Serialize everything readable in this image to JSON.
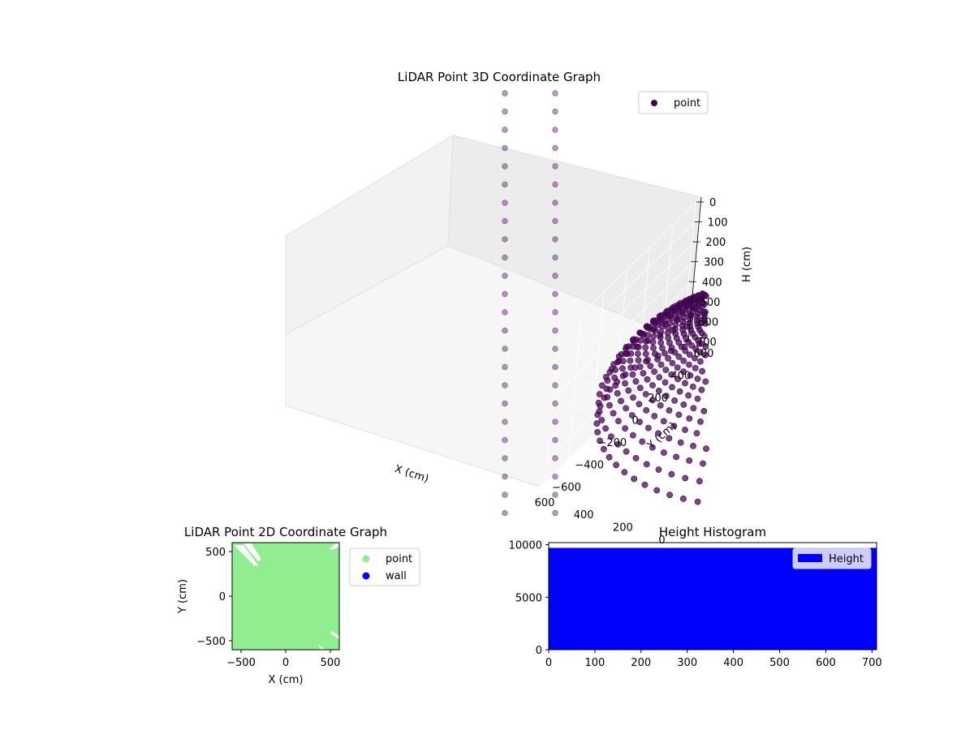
{
  "chart_data": [
    {
      "type": "scatter",
      "projection": "3d",
      "title": "LiDAR Point 3D Coordinate Graph",
      "xlabel": "X (cm)",
      "ylabel": "Y (cm)",
      "zlabel": "H (cm)",
      "xlim": [
        -650,
        650
      ],
      "ylim": [
        -650,
        650
      ],
      "zlim": [
        0,
        700
      ],
      "z_inverted": true,
      "xticks": [
        "−600",
        "−400",
        "−200",
        "0",
        "200",
        "400",
        "600"
      ],
      "yticks": [
        "−600",
        "−400",
        "−200",
        "0",
        "200",
        "400",
        "600"
      ],
      "zticks": [
        "0",
        "100",
        "200",
        "300",
        "400",
        "500",
        "600",
        "700"
      ],
      "legend": {
        "location": "top-right",
        "entries": [
          {
            "label": "point",
            "color": "#440154"
          }
        ]
      },
      "series": [
        {
          "name": "point",
          "color": "#440154",
          "description_values": {
            "x_range": [
              -650,
              650
            ],
            "y_range": [
              -650,
              650
            ],
            "h_range": [
              0,
              700
            ]
          }
        }
      ],
      "grid": true
    },
    {
      "type": "scatter",
      "title": "LiDAR Point 2D Coordinate Graph",
      "xlabel": "X (cm)",
      "ylabel": "Y (cm)",
      "xlim": [
        -600,
        600
      ],
      "ylim": [
        -600,
        600
      ],
      "xticks": [
        "−500",
        "0",
        "500"
      ],
      "yticks": [
        "−500",
        "0",
        "500"
      ],
      "legend": {
        "location": "outside-right",
        "entries": [
          {
            "label": "point",
            "color": "#90ee90"
          },
          {
            "label": "wall",
            "color": "#0000ff"
          }
        ]
      },
      "grid": false
    },
    {
      "type": "bar",
      "subtype": "histogram",
      "title": "Height Histogram",
      "xlim": [
        0,
        710
      ],
      "ylim": [
        0,
        10200
      ],
      "xticks": [
        "0",
        "100",
        "200",
        "300",
        "400",
        "500",
        "600",
        "700"
      ],
      "yticks": [
        "0",
        "5000",
        "10000"
      ],
      "series": [
        {
          "name": "Height",
          "color": "#0000ff",
          "x_range": [
            0,
            710
          ],
          "count": 9700
        }
      ],
      "legend": {
        "location": "top-right",
        "entries": [
          {
            "label": "Height",
            "color": "#0000ff"
          }
        ]
      },
      "grid": false
    }
  ]
}
